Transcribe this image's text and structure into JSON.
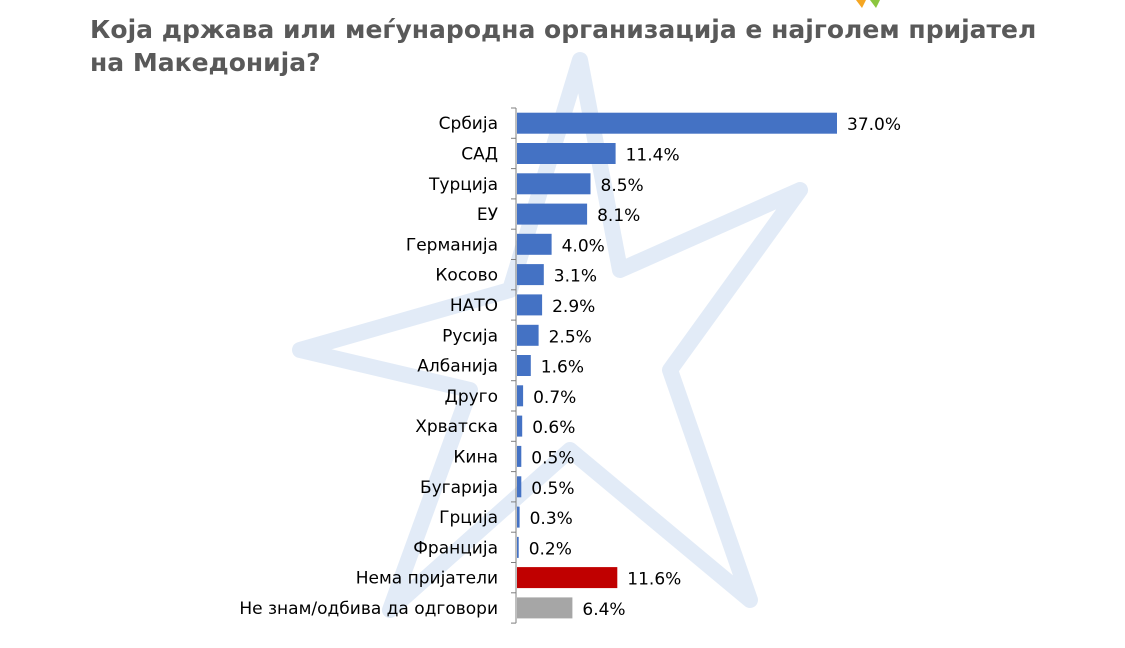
{
  "colors": {
    "default": "#4472C4",
    "highlight": "#C00000",
    "neutral": "#A6A6A6",
    "axis": "#7F7F7F",
    "title": "#595959"
  },
  "chart_data": {
    "type": "bar",
    "orientation": "horizontal",
    "title": "Која држава или меѓународна организација е најголем пријател на Македонија?",
    "xlabel": "",
    "ylabel": "",
    "xlim": [
      0,
      37
    ],
    "grid": false,
    "legend": "none",
    "unit": "%",
    "categories": [
      "Србија",
      "САД",
      "Турција",
      "ЕУ",
      "Германија",
      "Косово",
      "НАТО",
      "Русија",
      "Албанија",
      "Друго",
      "Хрватска",
      "Кина",
      "Бугарија",
      "Грција",
      "Франција",
      "Нема пријатели",
      "Не знам/одбива да одговори"
    ],
    "values": [
      37.0,
      11.4,
      8.5,
      8.1,
      4.0,
      3.1,
      2.9,
      2.5,
      1.6,
      0.7,
      0.6,
      0.5,
      0.5,
      0.3,
      0.2,
      11.6,
      6.4
    ],
    "value_labels": [
      "37.0%",
      "11.4%",
      "8.5%",
      "8.1%",
      "4.0%",
      "3.1%",
      "2.9%",
      "2.5%",
      "1.6%",
      "0.7%",
      "0.6%",
      "0.5%",
      "0.5%",
      "0.3%",
      "0.2%",
      "11.6%",
      "6.4%"
    ],
    "bar_colors": [
      "#4472C4",
      "#4472C4",
      "#4472C4",
      "#4472C4",
      "#4472C4",
      "#4472C4",
      "#4472C4",
      "#4472C4",
      "#4472C4",
      "#4472C4",
      "#4472C4",
      "#4472C4",
      "#4472C4",
      "#4472C4",
      "#4472C4",
      "#C00000",
      "#A6A6A6"
    ]
  }
}
